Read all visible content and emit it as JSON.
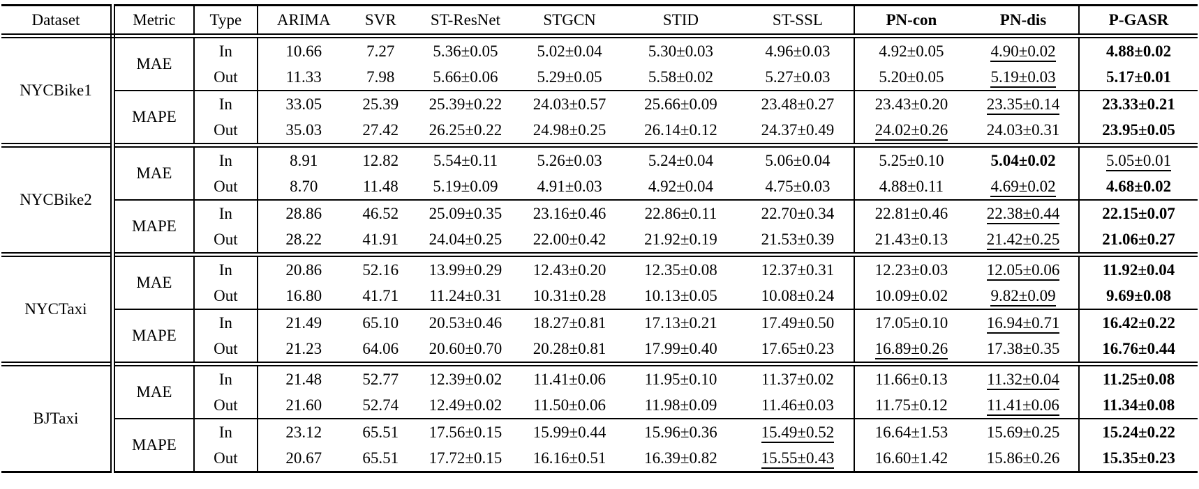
{
  "table": {
    "columns": [
      {
        "label": "Dataset",
        "bold": false
      },
      {
        "label": "Metric",
        "bold": false
      },
      {
        "label": "Type",
        "bold": false
      },
      {
        "label": "ARIMA",
        "bold": false
      },
      {
        "label": "SVR",
        "bold": false
      },
      {
        "label": "ST-ResNet",
        "bold": false
      },
      {
        "label": "STGCN",
        "bold": false
      },
      {
        "label": "STID",
        "bold": false
      },
      {
        "label": "ST-SSL",
        "bold": false
      },
      {
        "label": "PN-con",
        "bold": true
      },
      {
        "label": "PN-dis",
        "bold": true
      },
      {
        "label": "P-GASR",
        "bold": true
      }
    ],
    "emphasis_legend": {
      "best": "bold",
      "second_best": "underline"
    },
    "datasets": [
      {
        "name": "NYCBike1",
        "groups": [
          {
            "metric": "MAE",
            "rows": [
              {
                "type": "In",
                "cells": [
                  "10.66",
                  "7.27",
                  "5.36±0.05",
                  "5.02±0.04",
                  "5.30±0.03",
                  "4.96±0.03",
                  "4.92±0.05",
                  "4.90±0.02",
                  "4.88±0.02"
                ],
                "styles": [
                  "",
                  "",
                  "",
                  "",
                  "",
                  "",
                  "",
                  "u",
                  "b"
                ]
              },
              {
                "type": "Out",
                "cells": [
                  "11.33",
                  "7.98",
                  "5.66±0.06",
                  "5.29±0.05",
                  "5.58±0.02",
                  "5.27±0.03",
                  "5.20±0.05",
                  "5.19±0.03",
                  "5.17±0.01"
                ],
                "styles": [
                  "",
                  "",
                  "",
                  "",
                  "",
                  "",
                  "",
                  "u",
                  "b"
                ]
              }
            ]
          },
          {
            "metric": "MAPE",
            "rows": [
              {
                "type": "In",
                "cells": [
                  "33.05",
                  "25.39",
                  "25.39±0.22",
                  "24.03±0.57",
                  "25.66±0.09",
                  "23.48±0.27",
                  "23.43±0.20",
                  "23.35±0.14",
                  "23.33±0.21"
                ],
                "styles": [
                  "",
                  "",
                  "",
                  "",
                  "",
                  "",
                  "",
                  "u",
                  "b"
                ]
              },
              {
                "type": "Out",
                "cells": [
                  "35.03",
                  "27.42",
                  "26.25±0.22",
                  "24.98±0.25",
                  "26.14±0.12",
                  "24.37±0.49",
                  "24.02±0.26",
                  "24.03±0.31",
                  "23.95±0.05"
                ],
                "styles": [
                  "",
                  "",
                  "",
                  "",
                  "",
                  "",
                  "u",
                  "",
                  "b"
                ]
              }
            ]
          }
        ]
      },
      {
        "name": "NYCBike2",
        "groups": [
          {
            "metric": "MAE",
            "rows": [
              {
                "type": "In",
                "cells": [
                  "8.91",
                  "12.82",
                  "5.54±0.11",
                  "5.26±0.03",
                  "5.24±0.04",
                  "5.06±0.04",
                  "5.25±0.10",
                  "5.04±0.02",
                  "5.05±0.01"
                ],
                "styles": [
                  "",
                  "",
                  "",
                  "",
                  "",
                  "",
                  "",
                  "b",
                  "u"
                ]
              },
              {
                "type": "Out",
                "cells": [
                  "8.70",
                  "11.48",
                  "5.19±0.09",
                  "4.91±0.03",
                  "4.92±0.04",
                  "4.75±0.03",
                  "4.88±0.11",
                  "4.69±0.02",
                  "4.68±0.02"
                ],
                "styles": [
                  "",
                  "",
                  "",
                  "",
                  "",
                  "",
                  "",
                  "u",
                  "b"
                ]
              }
            ]
          },
          {
            "metric": "MAPE",
            "rows": [
              {
                "type": "In",
                "cells": [
                  "28.86",
                  "46.52",
                  "25.09±0.35",
                  "23.16±0.46",
                  "22.86±0.11",
                  "22.70±0.34",
                  "22.81±0.46",
                  "22.38±0.44",
                  "22.15±0.07"
                ],
                "styles": [
                  "",
                  "",
                  "",
                  "",
                  "",
                  "",
                  "",
                  "u",
                  "b"
                ]
              },
              {
                "type": "Out",
                "cells": [
                  "28.22",
                  "41.91",
                  "24.04±0.25",
                  "22.00±0.42",
                  "21.92±0.19",
                  "21.53±0.39",
                  "21.43±0.13",
                  "21.42±0.25",
                  "21.06±0.27"
                ],
                "styles": [
                  "",
                  "",
                  "",
                  "",
                  "",
                  "",
                  "",
                  "u",
                  "b"
                ]
              }
            ]
          }
        ]
      },
      {
        "name": "NYCTaxi",
        "groups": [
          {
            "metric": "MAE",
            "rows": [
              {
                "type": "In",
                "cells": [
                  "20.86",
                  "52.16",
                  "13.99±0.29",
                  "12.43±0.20",
                  "12.35±0.08",
                  "12.37±0.31",
                  "12.23±0.03",
                  "12.05±0.06",
                  "11.92±0.04"
                ],
                "styles": [
                  "",
                  "",
                  "",
                  "",
                  "",
                  "",
                  "",
                  "u",
                  "b"
                ]
              },
              {
                "type": "Out",
                "cells": [
                  "16.80",
                  "41.71",
                  "11.24±0.31",
                  "10.31±0.28",
                  "10.13±0.05",
                  "10.08±0.24",
                  "10.09±0.02",
                  "9.82±0.09",
                  "9.69±0.08"
                ],
                "styles": [
                  "",
                  "",
                  "",
                  "",
                  "",
                  "",
                  "",
                  "u",
                  "b"
                ]
              }
            ]
          },
          {
            "metric": "MAPE",
            "rows": [
              {
                "type": "In",
                "cells": [
                  "21.49",
                  "65.10",
                  "20.53±0.46",
                  "18.27±0.81",
                  "17.13±0.21",
                  "17.49±0.50",
                  "17.05±0.10",
                  "16.94±0.71",
                  "16.42±0.22"
                ],
                "styles": [
                  "",
                  "",
                  "",
                  "",
                  "",
                  "",
                  "",
                  "u",
                  "b"
                ]
              },
              {
                "type": "Out",
                "cells": [
                  "21.23",
                  "64.06",
                  "20.60±0.70",
                  "20.28±0.81",
                  "17.99±0.40",
                  "17.65±0.23",
                  "16.89±0.26",
                  "17.38±0.35",
                  "16.76±0.44"
                ],
                "styles": [
                  "",
                  "",
                  "",
                  "",
                  "",
                  "",
                  "u",
                  "",
                  "b"
                ]
              }
            ]
          }
        ]
      },
      {
        "name": "BJTaxi",
        "groups": [
          {
            "metric": "MAE",
            "rows": [
              {
                "type": "In",
                "cells": [
                  "21.48",
                  "52.77",
                  "12.39±0.02",
                  "11.41±0.06",
                  "11.95±0.10",
                  "11.37±0.02",
                  "11.66±0.13",
                  "11.32±0.04",
                  "11.25±0.08"
                ],
                "styles": [
                  "",
                  "",
                  "",
                  "",
                  "",
                  "",
                  "",
                  "u",
                  "b"
                ]
              },
              {
                "type": "Out",
                "cells": [
                  "21.60",
                  "52.74",
                  "12.49±0.02",
                  "11.50±0.06",
                  "11.98±0.09",
                  "11.46±0.03",
                  "11.75±0.12",
                  "11.41±0.06",
                  "11.34±0.08"
                ],
                "styles": [
                  "",
                  "",
                  "",
                  "",
                  "",
                  "",
                  "",
                  "u",
                  "b"
                ]
              }
            ]
          },
          {
            "metric": "MAPE",
            "rows": [
              {
                "type": "In",
                "cells": [
                  "23.12",
                  "65.51",
                  "17.56±0.15",
                  "15.99±0.44",
                  "15.96±0.36",
                  "15.49±0.52",
                  "16.64±1.53",
                  "15.69±0.25",
                  "15.24±0.22"
                ],
                "styles": [
                  "",
                  "",
                  "",
                  "",
                  "",
                  "u",
                  "",
                  "",
                  "b"
                ]
              },
              {
                "type": "Out",
                "cells": [
                  "20.67",
                  "65.51",
                  "17.72±0.15",
                  "16.16±0.51",
                  "16.39±0.82",
                  "15.55±0.43",
                  "16.60±1.42",
                  "15.86±0.26",
                  "15.35±0.23"
                ],
                "styles": [
                  "",
                  "",
                  "",
                  "",
                  "",
                  "u",
                  "",
                  "",
                  "b"
                ]
              }
            ]
          }
        ]
      }
    ]
  }
}
